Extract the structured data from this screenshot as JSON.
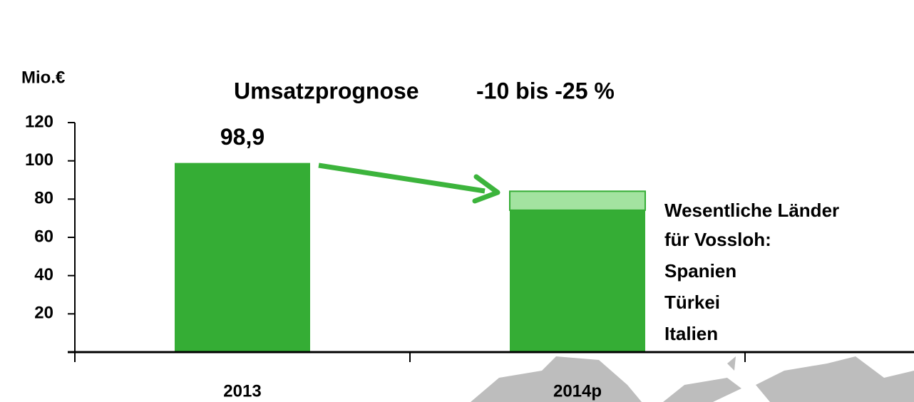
{
  "chart_data": {
    "type": "stacked_bar",
    "title": "Umsatzprognose",
    "annotation": "-10 bis -25 %",
    "y_label": "Mio.€",
    "categories": [
      "2013",
      "2014p"
    ],
    "series": [
      {
        "color": "#35ad35",
        "values": [
          98.9,
          74.2
        ],
        "value_labels": [
          "98,9",
          null
        ]
      },
      {
        "color": "#a3e3a0",
        "values": [
          null,
          9.9
        ]
      }
    ],
    "ylim": [
      0,
      120
    ],
    "yticks": [
      20,
      40,
      60,
      80,
      100,
      120
    ],
    "note_lines": [
      "Wesentliche Länder",
      "für Vossloh:",
      "Spanien",
      "Türkei",
      "Italien"
    ]
  }
}
